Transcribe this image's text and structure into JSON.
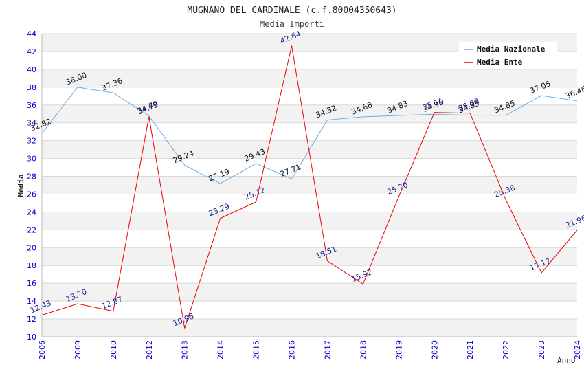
{
  "chart_data": {
    "type": "line",
    "title": "MUGNANO DEL CARDINALE (c.f.80004350643)",
    "subtitle": "Media Importi",
    "xlabel": "Anno",
    "ylabel": "Media",
    "ylim": [
      10,
      44
    ],
    "yticks": [
      10,
      12,
      14,
      16,
      18,
      20,
      22,
      24,
      26,
      28,
      30,
      32,
      34,
      36,
      38,
      40,
      42,
      44
    ],
    "categories": [
      "2006",
      "2009",
      "2010",
      "2012",
      "2013",
      "2014",
      "2015",
      "2016",
      "2017",
      "2018",
      "2019",
      "2020",
      "2021",
      "2022",
      "2023",
      "2024"
    ],
    "legend_position": "top-right",
    "series": [
      {
        "name": "Media Nazionale",
        "color": "#6aaee6",
        "values": [
          32.82,
          38.0,
          37.36,
          34.79,
          29.24,
          27.19,
          29.43,
          27.71,
          34.32,
          34.68,
          34.83,
          34.96,
          34.85,
          34.85,
          37.05,
          36.46
        ],
        "labels": [
          "32.82",
          "38.00",
          "37.36",
          "34.79",
          "29.24",
          "27.19",
          "29.43",
          "27.71",
          "34.32",
          "34.68",
          "34.83",
          "34.96",
          "34.85",
          "34.85",
          "37.05",
          "36.46"
        ]
      },
      {
        "name": "Media Ente",
        "color": "#ee0000",
        "values": [
          12.43,
          13.7,
          12.87,
          34.69,
          10.96,
          23.29,
          25.12,
          42.64,
          18.51,
          15.92,
          25.7,
          35.16,
          35.08,
          25.38,
          17.17,
          21.96
        ],
        "labels": [
          "12.43",
          "13.70",
          "12.87",
          "34.69",
          "10.96",
          "23.29",
          "25.12",
          "42.64",
          "18.51",
          "15.92",
          "25.70",
          "35.16",
          "35.08",
          "25.38",
          "17.17",
          "21.96"
        ]
      }
    ]
  }
}
